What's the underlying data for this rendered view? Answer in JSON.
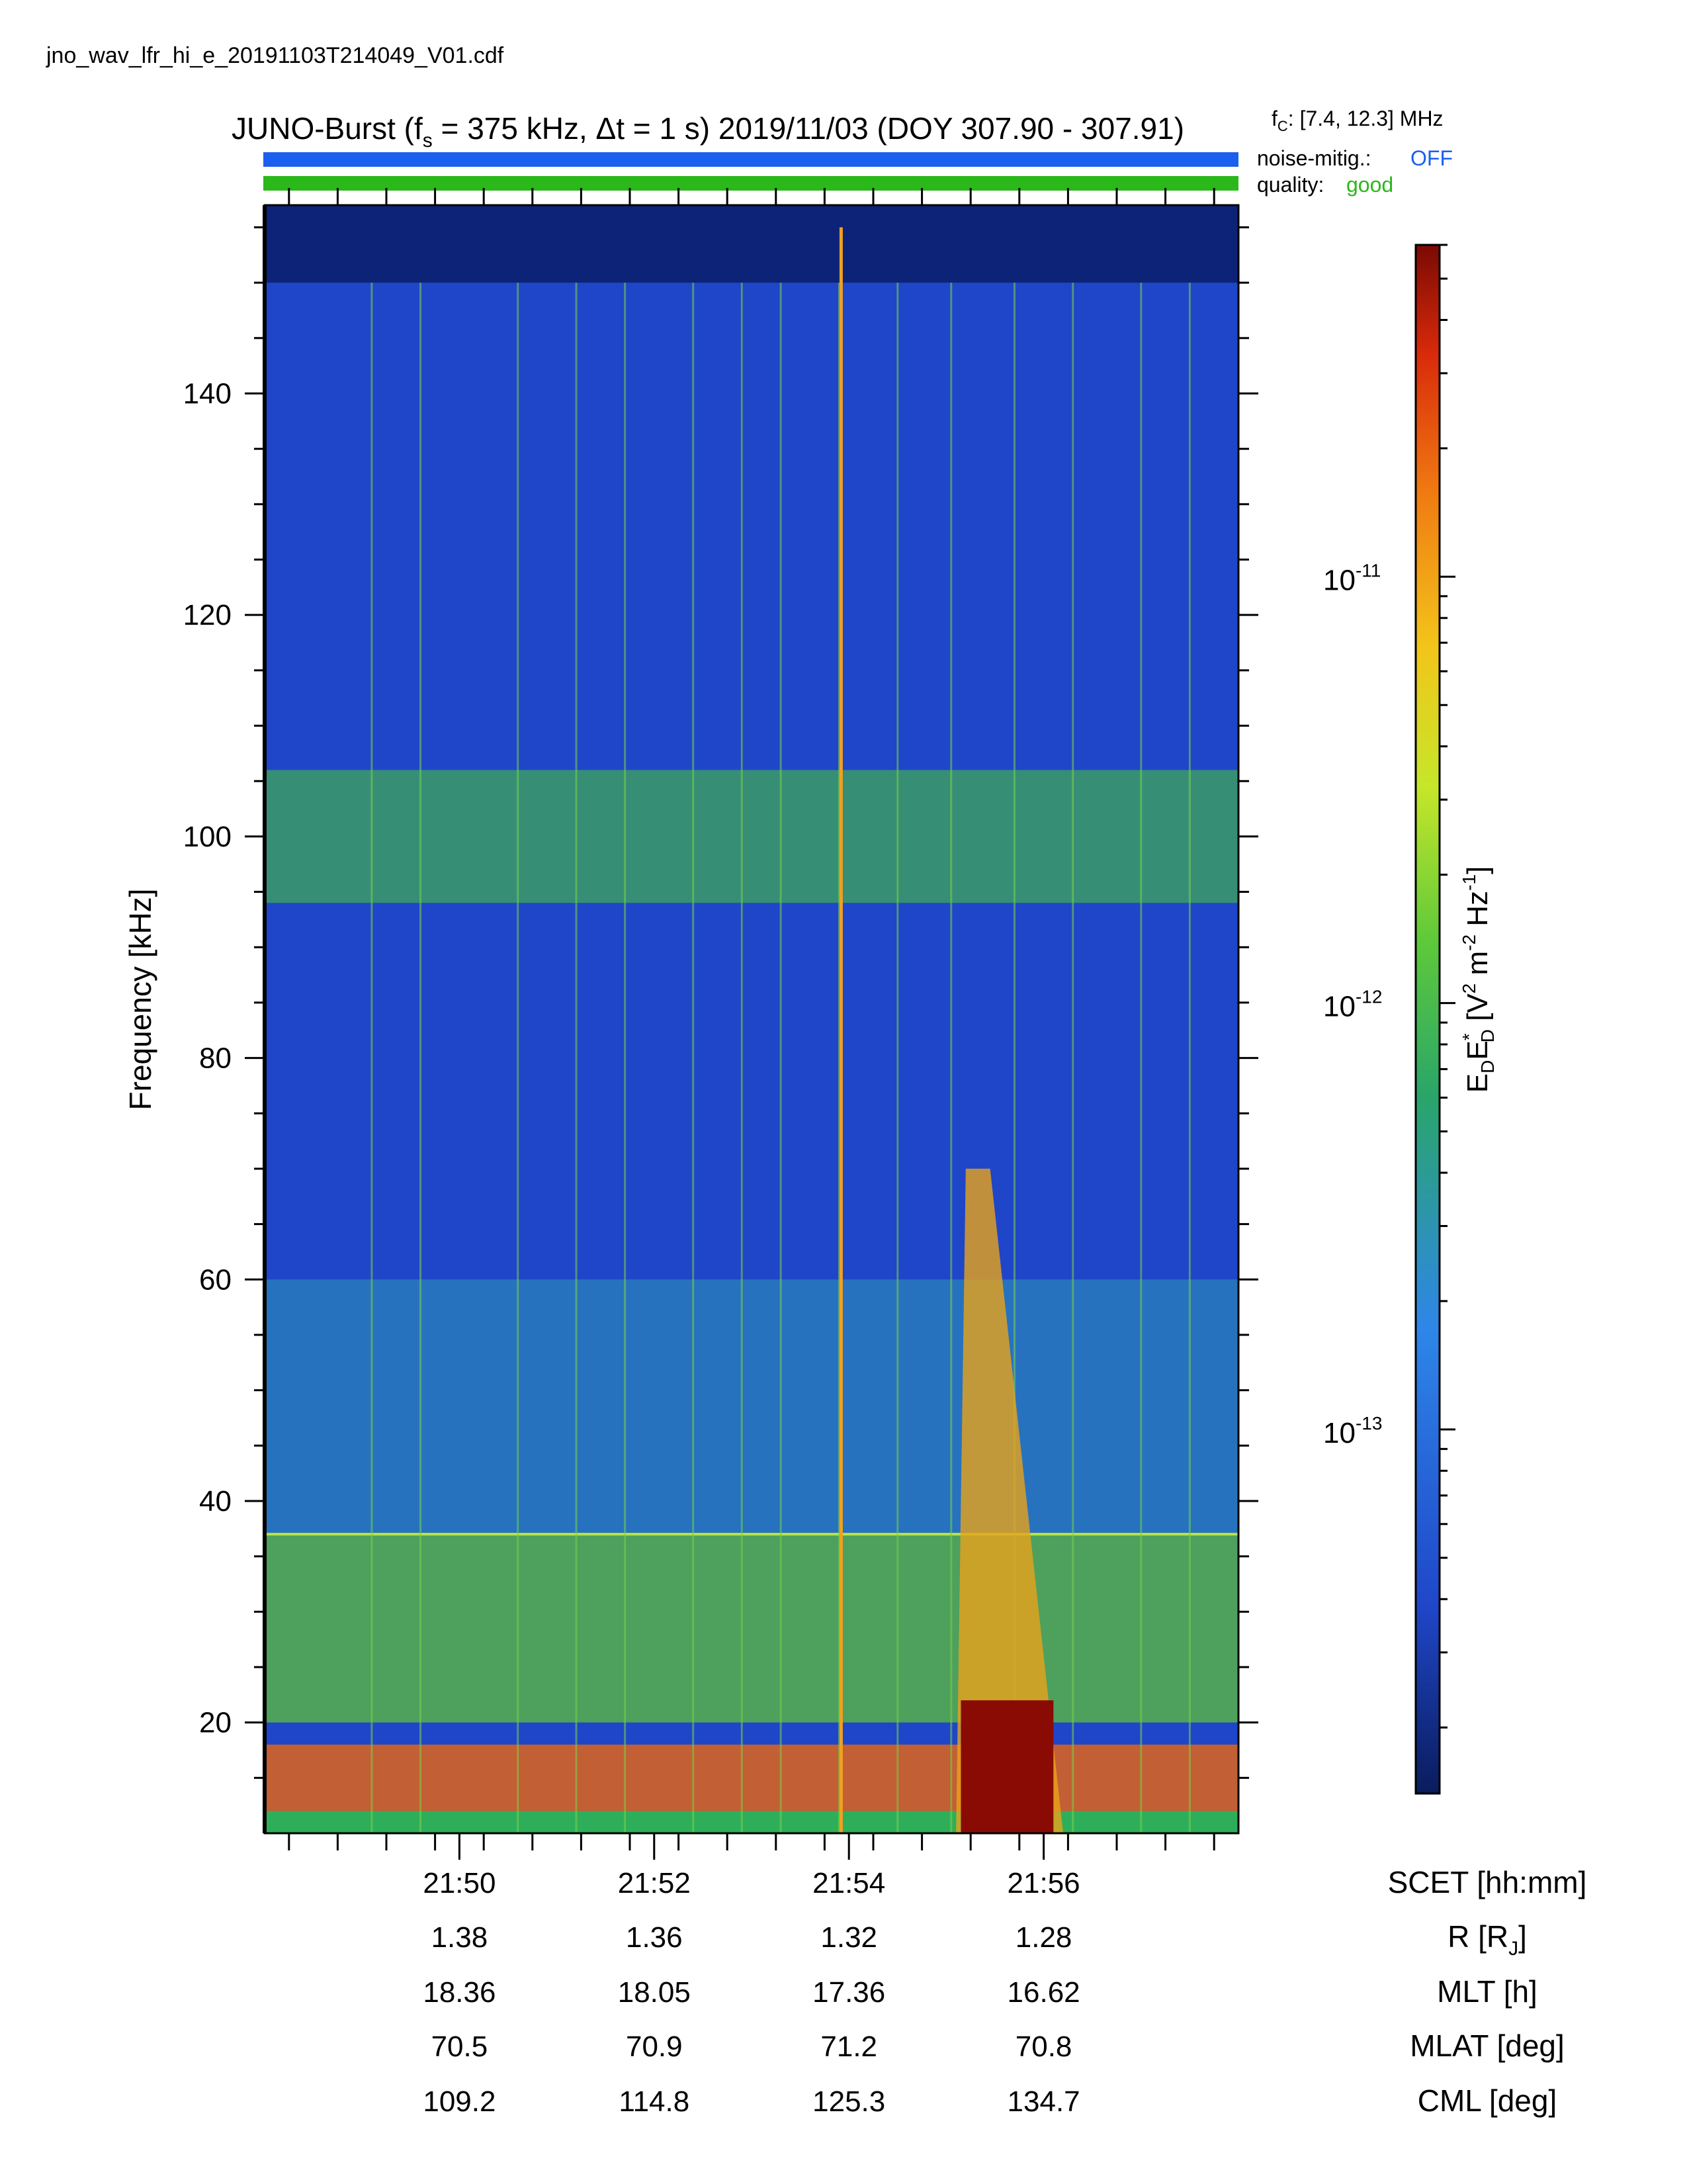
{
  "file_name": "jno_wav_lfr_hi_e_20191103T214049_V01.cdf",
  "header": {
    "title_prefix": "JUNO-Burst (f",
    "title_fs_sub": "s",
    "title_middle": " = 375 kHz, Δt = 1 s)  2019/11/03 (DOY 307.90 - 307.91)",
    "fc_label": "f",
    "fc_sub": "C",
    "fc_value": ": [7.4, 12.3] MHz",
    "noise_label": "noise-mitig.:",
    "noise_value": "OFF",
    "quality_label": "quality:",
    "quality_value": "good",
    "noise_color": "#1a5ff0",
    "quality_color": "#2ab81a"
  },
  "chart_data": {
    "type": "heatmap",
    "ylabel": "Frequency [kHz]",
    "ylim": [
      10,
      157
    ],
    "y_ticks": [
      20,
      40,
      60,
      80,
      100,
      120,
      140
    ],
    "x_ticks": [
      "21:50",
      "21:52",
      "21:54",
      "21:56"
    ],
    "x_tick_minutes": [
      50,
      52,
      54,
      56
    ],
    "xlim_minutes": [
      48.0,
      58.0
    ],
    "colorbar": {
      "label_base": "E",
      "label_full": "EDED* [V2 m-2 Hz-1]",
      "scale": "log",
      "range": [
        1.4e-14,
        6e-11
      ],
      "tick_values": [
        1e-11,
        1e-12,
        1e-13
      ],
      "tick_mantissa": "10",
      "tick_exponents": [
        "-11",
        "-12",
        "-13"
      ],
      "colormap": [
        "#0a1c5c",
        "#1f46c8",
        "#2e86e8",
        "#2aa56a",
        "#5dc93a",
        "#c6e62a",
        "#f2c51a",
        "#f07a12",
        "#d82a0a",
        "#7a0a04"
      ]
    },
    "features": {
      "background_band_khz": [
        94,
        106
      ],
      "horizontal_line_khz": 37,
      "low_freq_intense_band_khz": [
        12,
        18
      ],
      "broadband_burst_minute": 55.3
    }
  },
  "ephemeris": {
    "rows": [
      {
        "label": "SCET [hh:mm]",
        "values": [
          "21:50",
          "21:52",
          "21:54",
          "21:56"
        ]
      },
      {
        "label": "R [R",
        "label_sub": "J",
        "label_end": "]",
        "values": [
          "1.38",
          "1.36",
          "1.32",
          "1.28"
        ]
      },
      {
        "label": "MLT [h]",
        "values": [
          "18.36",
          "18.05",
          "17.36",
          "16.62"
        ]
      },
      {
        "label": "MLAT [deg]",
        "values": [
          "70.5",
          "70.9",
          "71.2",
          "70.8"
        ]
      },
      {
        "label": "CML [deg]",
        "values": [
          "109.2",
          "114.8",
          "125.3",
          "134.7"
        ]
      }
    ]
  }
}
